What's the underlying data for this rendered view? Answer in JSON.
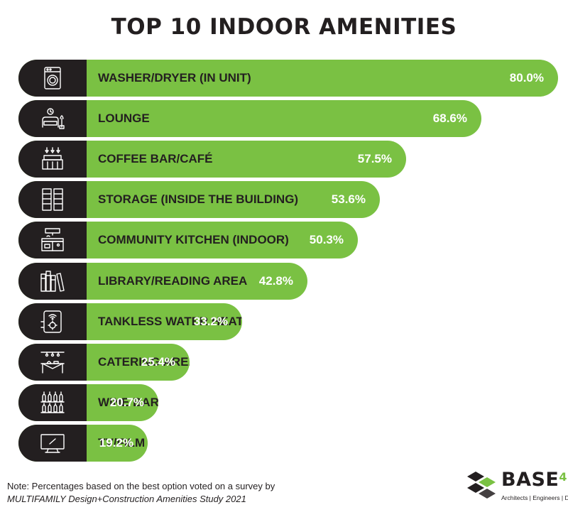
{
  "title": "TOP 10 INDOOR AMENITIES",
  "colors": {
    "accent": "#7ac143",
    "dark": "#231f20",
    "white": "#ffffff"
  },
  "chart_data": {
    "type": "bar",
    "orientation": "horizontal",
    "title": "TOP 10 INDOOR AMENITIES",
    "xlabel": "",
    "ylabel": "",
    "unit": "%",
    "categories": [
      "WASHER/DRYER (IN UNIT)",
      "LOUNGE",
      "COFFEE BAR/CAFÉ",
      "STORAGE (INSIDE THE BUILDING)",
      "COMMUNITY KITCHEN (INDOOR)",
      "LIBRARY/READING AREA",
      "TANKLESS WATER HEATERS",
      "CATERING AREA",
      "WINE BAR",
      "TV/FILM SCREENING ROOM"
    ],
    "values": [
      80.0,
      68.6,
      57.5,
      53.6,
      50.3,
      42.8,
      33.2,
      25.4,
      20.7,
      19.2
    ],
    "value_labels": [
      "80.0%",
      "68.6%",
      "57.5%",
      "53.6%",
      "50.3%",
      "42.8%",
      "33.2%",
      "25.4%",
      "20.7%",
      "19.2%"
    ],
    "icons": [
      "washing-machine-icon",
      "lounge-chair-icon",
      "coffee-bar-icon",
      "storage-cabinet-icon",
      "kitchen-icon",
      "bookshelf-icon",
      "water-heater-icon",
      "catering-table-icon",
      "wine-rack-icon",
      "tv-icon"
    ]
  },
  "note": {
    "line1": "Note: Percentages based on the best option voted on a survey by",
    "line2": "MULTIFAMILY Design+Construction Amenities Study 2021"
  },
  "logo": {
    "word": "BASE",
    "number": "4",
    "tagline": "Architects | Engineers | Designers"
  }
}
